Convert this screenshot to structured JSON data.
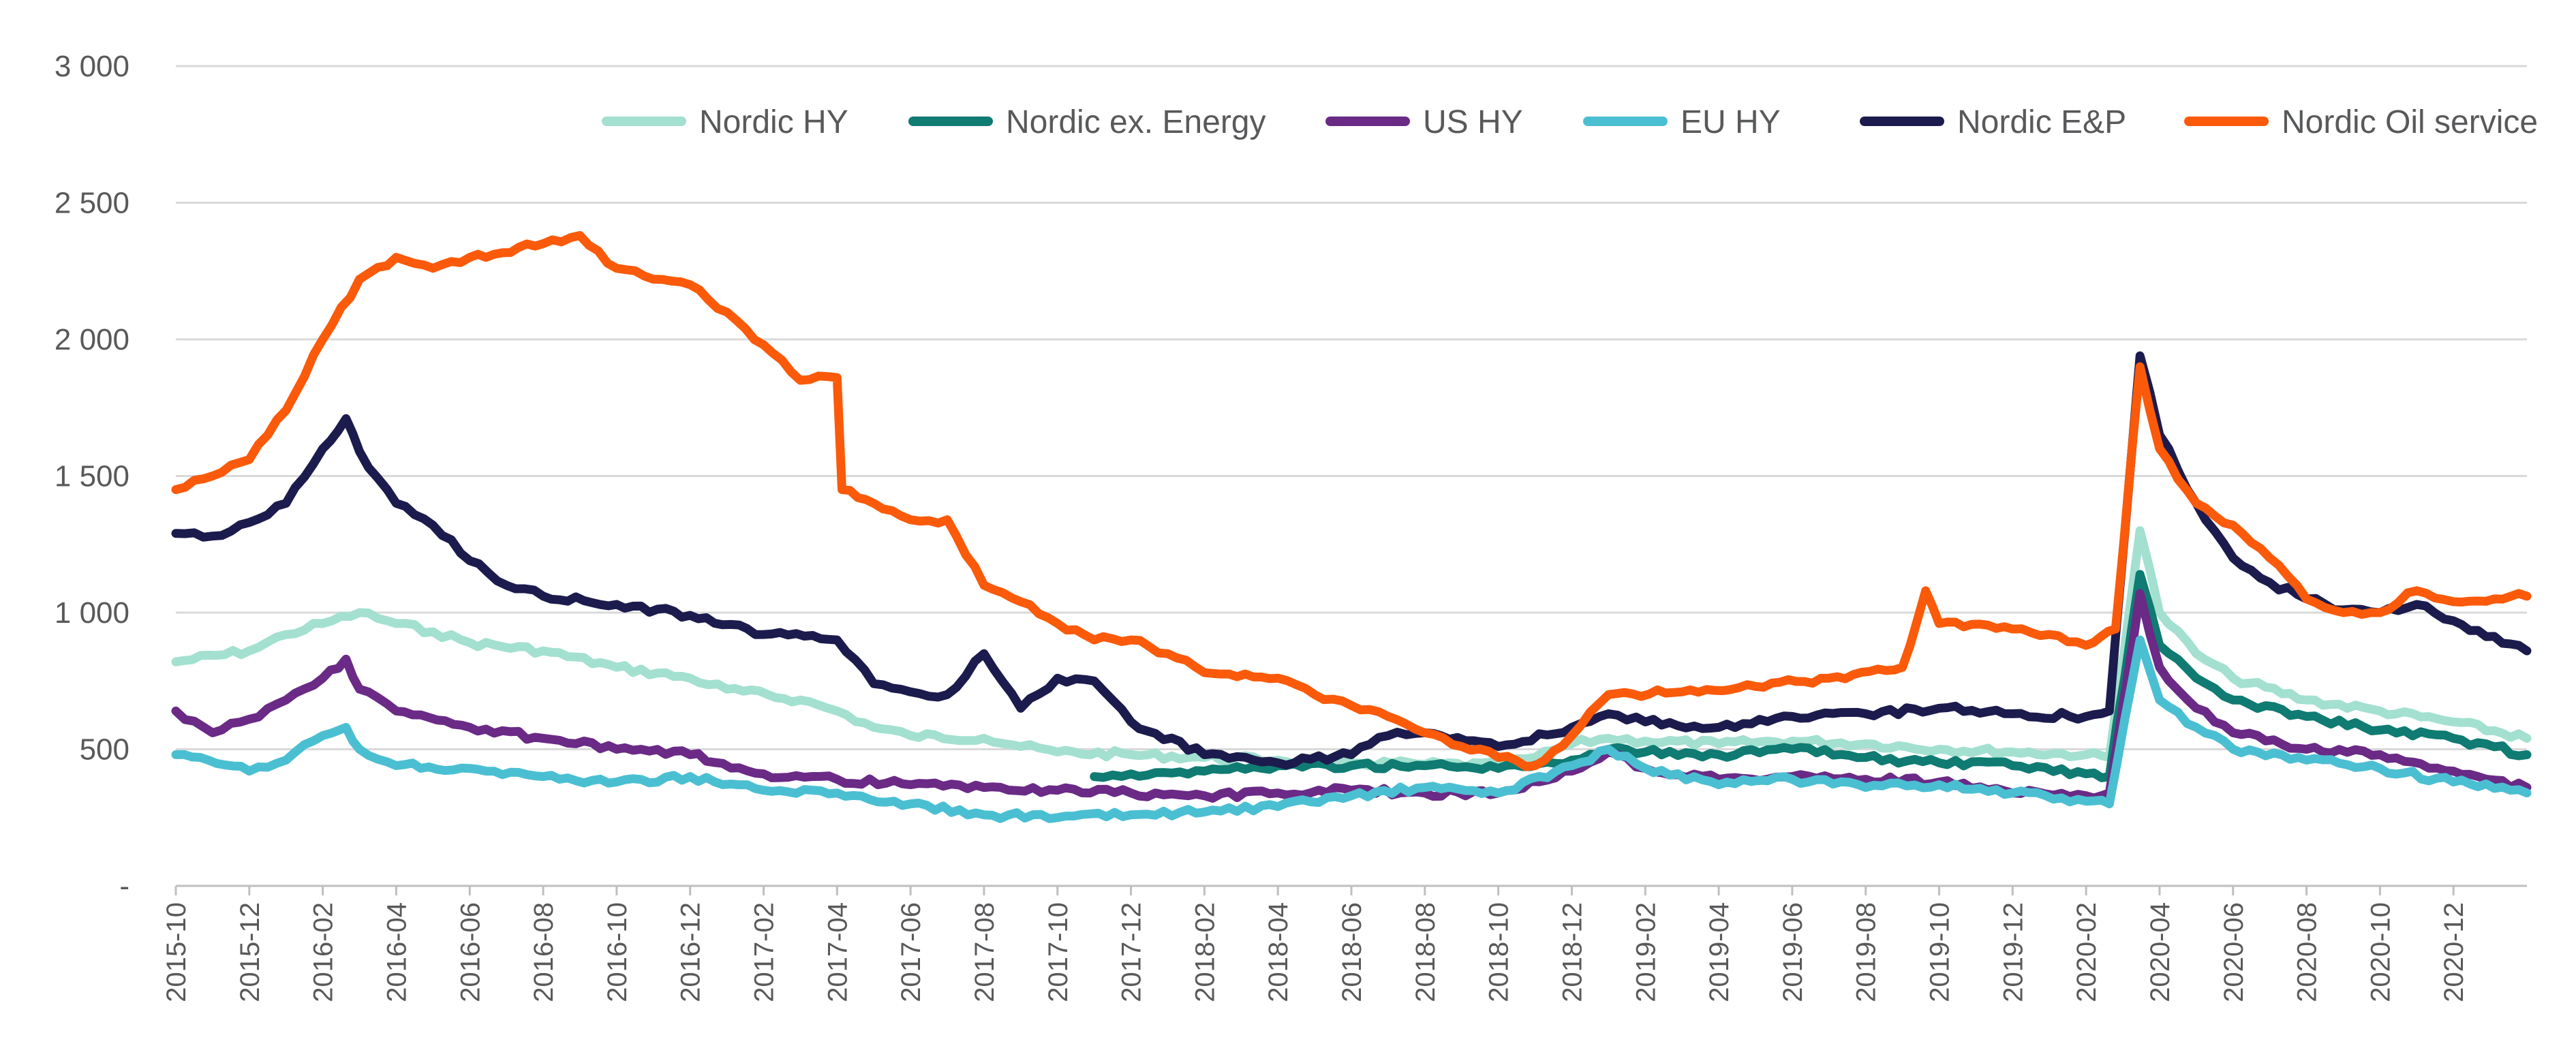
{
  "chart_data": {
    "type": "line",
    "title": "",
    "xlabel": "",
    "ylabel": "",
    "ylim": [
      0,
      3000
    ],
    "y_ticks": [
      {
        "value": 0,
        "label": "-"
      },
      {
        "value": 500,
        "label": "500"
      },
      {
        "value": 1000,
        "label": "1 000"
      },
      {
        "value": 1500,
        "label": "1 500"
      },
      {
        "value": 2000,
        "label": "2 000"
      },
      {
        "value": 2500,
        "label": "2 500"
      },
      {
        "value": 3000,
        "label": "3 000"
      }
    ],
    "x_range": [
      "2015-10",
      "2021-02"
    ],
    "x_ticks": [
      "2015-10",
      "2015-12",
      "2016-02",
      "2016-04",
      "2016-06",
      "2016-08",
      "2016-10",
      "2016-12",
      "2017-02",
      "2017-04",
      "2017-06",
      "2017-08",
      "2017-10",
      "2017-12",
      "2018-02",
      "2018-04",
      "2018-06",
      "2018-08",
      "2018-10",
      "2018-12",
      "2019-02",
      "2019-04",
      "2019-06",
      "2019-08",
      "2019-10",
      "2019-12",
      "2020-02",
      "2020-04",
      "2020-06",
      "2020-08",
      "2020-10",
      "2020-12"
    ],
    "grid": "horizontal",
    "legend_position": "top-right",
    "series": [
      {
        "name": "Nordic HY",
        "color": "#a3e0d0",
        "points": [
          [
            "2015-10",
            820
          ],
          [
            "2015-12",
            860
          ],
          [
            "2016-01",
            920
          ],
          [
            "2016-02",
            960
          ],
          [
            "2016-03",
            1000
          ],
          [
            "2016-04",
            960
          ],
          [
            "2016-05",
            930
          ],
          [
            "2016-06",
            890
          ],
          [
            "2016-08",
            860
          ],
          [
            "2016-10",
            800
          ],
          [
            "2016-12",
            760
          ],
          [
            "2017-01",
            720
          ],
          [
            "2017-03",
            680
          ],
          [
            "2017-04",
            640
          ],
          [
            "2017-05",
            580
          ],
          [
            "2017-06",
            550
          ],
          [
            "2017-08",
            540
          ],
          [
            "2017-09",
            510
          ],
          [
            "2017-10",
            490
          ],
          [
            "2017-12",
            480
          ],
          [
            "2018-02",
            470
          ],
          [
            "2018-04",
            460
          ],
          [
            "2018-06",
            450
          ],
          [
            "2018-08",
            445
          ],
          [
            "2018-10",
            440
          ],
          [
            "2018-11",
            470
          ],
          [
            "2018-12",
            520
          ],
          [
            "2019-01",
            540
          ],
          [
            "2019-02",
            530
          ],
          [
            "2019-04",
            520
          ],
          [
            "2019-06",
            530
          ],
          [
            "2019-08",
            520
          ],
          [
            "2019-10",
            500
          ],
          [
            "2019-12",
            490
          ],
          [
            "2020-02",
            480
          ],
          [
            "2020-02-20",
            470
          ],
          [
            "2020-03-15",
            1300
          ],
          [
            "2020-04",
            1000
          ],
          [
            "2020-05",
            850
          ],
          [
            "2020-06",
            760
          ],
          [
            "2020-08",
            680
          ],
          [
            "2020-10",
            640
          ],
          [
            "2020-12",
            600
          ],
          [
            "2021-02",
            540
          ]
        ]
      },
      {
        "name": "Nordic ex. Energy",
        "color": "#0f7b72",
        "points": [
          [
            "2017-11",
            400
          ],
          [
            "2017-12",
            410
          ],
          [
            "2018-02",
            420
          ],
          [
            "2018-04",
            440
          ],
          [
            "2018-06",
            440
          ],
          [
            "2018-08",
            440
          ],
          [
            "2018-10",
            430
          ],
          [
            "2018-12",
            460
          ],
          [
            "2019-01",
            500
          ],
          [
            "2019-02",
            490
          ],
          [
            "2019-04",
            480
          ],
          [
            "2019-06",
            500
          ],
          [
            "2019-08",
            470
          ],
          [
            "2019-10",
            450
          ],
          [
            "2019-12",
            440
          ],
          [
            "2020-02",
            410
          ],
          [
            "2020-02-20",
            400
          ],
          [
            "2020-03-15",
            1140
          ],
          [
            "2020-04",
            880
          ],
          [
            "2020-05",
            760
          ],
          [
            "2020-06",
            680
          ],
          [
            "2020-08",
            620
          ],
          [
            "2020-10",
            570
          ],
          [
            "2020-12",
            540
          ],
          [
            "2021-02",
            480
          ]
        ]
      },
      {
        "name": "US HY",
        "color": "#6a2a86",
        "points": [
          [
            "2015-10",
            640
          ],
          [
            "2015-11",
            560
          ],
          [
            "2015-12",
            610
          ],
          [
            "2016-01",
            680
          ],
          [
            "2016-02",
            760
          ],
          [
            "2016-02-20",
            830
          ],
          [
            "2016-03",
            720
          ],
          [
            "2016-04",
            640
          ],
          [
            "2016-06",
            580
          ],
          [
            "2016-08",
            540
          ],
          [
            "2016-10",
            500
          ],
          [
            "2016-12",
            480
          ],
          [
            "2017-02",
            410
          ],
          [
            "2017-04",
            390
          ],
          [
            "2017-06",
            370
          ],
          [
            "2017-08",
            360
          ],
          [
            "2017-10",
            350
          ],
          [
            "2017-12",
            340
          ],
          [
            "2018-02",
            330
          ],
          [
            "2018-04",
            340
          ],
          [
            "2018-06",
            350
          ],
          [
            "2018-08",
            340
          ],
          [
            "2018-10",
            340
          ],
          [
            "2018-12",
            420
          ],
          [
            "2019-01",
            490
          ],
          [
            "2019-02",
            430
          ],
          [
            "2019-04",
            390
          ],
          [
            "2019-06",
            400
          ],
          [
            "2019-08",
            390
          ],
          [
            "2019-10",
            380
          ],
          [
            "2019-12",
            340
          ],
          [
            "2020-02",
            330
          ],
          [
            "2020-02-20",
            340
          ],
          [
            "2020-03-15",
            1070
          ],
          [
            "2020-04",
            800
          ],
          [
            "2020-05",
            650
          ],
          [
            "2020-06",
            560
          ],
          [
            "2020-08",
            500
          ],
          [
            "2020-10",
            480
          ],
          [
            "2020-12",
            420
          ],
          [
            "2021-02",
            360
          ]
        ]
      },
      {
        "name": "EU HY",
        "color": "#4bbfd2",
        "points": [
          [
            "2015-10",
            480
          ],
          [
            "2015-12",
            420
          ],
          [
            "2016-01",
            460
          ],
          [
            "2016-02",
            550
          ],
          [
            "2016-02-20",
            580
          ],
          [
            "2016-03",
            500
          ],
          [
            "2016-04",
            440
          ],
          [
            "2016-06",
            430
          ],
          [
            "2016-08",
            400
          ],
          [
            "2016-10",
            380
          ],
          [
            "2016-12",
            400
          ],
          [
            "2017-02",
            350
          ],
          [
            "2017-04",
            340
          ],
          [
            "2017-06",
            300
          ],
          [
            "2017-08",
            260
          ],
          [
            "2017-10",
            250
          ],
          [
            "2017-12",
            260
          ],
          [
            "2018-02",
            270
          ],
          [
            "2018-04",
            290
          ],
          [
            "2018-06",
            330
          ],
          [
            "2018-08",
            360
          ],
          [
            "2018-10",
            340
          ],
          [
            "2018-12",
            440
          ],
          [
            "2019-01",
            500
          ],
          [
            "2019-02",
            430
          ],
          [
            "2019-04",
            370
          ],
          [
            "2019-06",
            390
          ],
          [
            "2019-08",
            360
          ],
          [
            "2019-10",
            370
          ],
          [
            "2019-12",
            340
          ],
          [
            "2020-02",
            310
          ],
          [
            "2020-02-20",
            300
          ],
          [
            "2020-03-15",
            900
          ],
          [
            "2020-04",
            680
          ],
          [
            "2020-05",
            580
          ],
          [
            "2020-06",
            500
          ],
          [
            "2020-08",
            460
          ],
          [
            "2020-10",
            430
          ],
          [
            "2020-12",
            380
          ],
          [
            "2021-02",
            340
          ]
        ]
      },
      {
        "name": "Nordic E&P",
        "color": "#1c1b4d",
        "points": [
          [
            "2015-10",
            1290
          ],
          [
            "2015-11",
            1280
          ],
          [
            "2015-12",
            1330
          ],
          [
            "2016-01",
            1400
          ],
          [
            "2016-02",
            1600
          ],
          [
            "2016-02-20",
            1710
          ],
          [
            "2016-03",
            1590
          ],
          [
            "2016-04",
            1400
          ],
          [
            "2016-05",
            1320
          ],
          [
            "2016-06",
            1190
          ],
          [
            "2016-07",
            1100
          ],
          [
            "2016-08",
            1060
          ],
          [
            "2016-10",
            1030
          ],
          [
            "2016-12",
            990
          ],
          [
            "2017-02",
            920
          ],
          [
            "2017-04",
            900
          ],
          [
            "2017-05",
            740
          ],
          [
            "2017-06",
            710
          ],
          [
            "2017-07",
            700
          ],
          [
            "2017-08",
            850
          ],
          [
            "2017-09",
            650
          ],
          [
            "2017-10",
            760
          ],
          [
            "2017-11",
            750
          ],
          [
            "2017-12",
            600
          ],
          [
            "2018-02",
            480
          ],
          [
            "2018-04",
            450
          ],
          [
            "2018-06",
            480
          ],
          [
            "2018-07",
            550
          ],
          [
            "2018-08",
            560
          ],
          [
            "2018-10",
            510
          ],
          [
            "2018-12",
            580
          ],
          [
            "2019-01",
            630
          ],
          [
            "2019-02",
            600
          ],
          [
            "2019-04",
            580
          ],
          [
            "2019-06",
            620
          ],
          [
            "2019-08",
            630
          ],
          [
            "2019-10",
            650
          ],
          [
            "2019-12",
            630
          ],
          [
            "2020-02",
            620
          ],
          [
            "2020-02-20",
            640
          ],
          [
            "2020-03-15",
            1940
          ],
          [
            "2020-04",
            1650
          ],
          [
            "2020-05",
            1400
          ],
          [
            "2020-06",
            1200
          ],
          [
            "2020-07",
            1110
          ],
          [
            "2020-08",
            1050
          ],
          [
            "2020-09",
            1010
          ],
          [
            "2020-10",
            1000
          ],
          [
            "2020-11",
            1030
          ],
          [
            "2020-12",
            970
          ],
          [
            "2021-02",
            860
          ]
        ]
      },
      {
        "name": "Nordic Oil service",
        "color": "#fa5a0a",
        "points": [
          [
            "2015-10",
            1450
          ],
          [
            "2015-11",
            1500
          ],
          [
            "2015-12",
            1560
          ],
          [
            "2016-01",
            1740
          ],
          [
            "2016-02",
            2000
          ],
          [
            "2016-03",
            2220
          ],
          [
            "2016-04",
            2300
          ],
          [
            "2016-05",
            2260
          ],
          [
            "2016-06",
            2300
          ],
          [
            "2016-08",
            2350
          ],
          [
            "2016-09",
            2380
          ],
          [
            "2016-10",
            2260
          ],
          [
            "2016-11",
            2220
          ],
          [
            "2016-12",
            2200
          ],
          [
            "2017-01",
            2100
          ],
          [
            "2017-02",
            1980
          ],
          [
            "2017-03",
            1850
          ],
          [
            "2017-04",
            1860
          ],
          [
            "2017-04-05",
            1450
          ],
          [
            "2017-05",
            1400
          ],
          [
            "2017-06",
            1340
          ],
          [
            "2017-07",
            1340
          ],
          [
            "2017-08",
            1100
          ],
          [
            "2017-09",
            1040
          ],
          [
            "2017-10",
            960
          ],
          [
            "2017-11",
            900
          ],
          [
            "2017-12",
            900
          ],
          [
            "2018-01",
            850
          ],
          [
            "2018-02",
            780
          ],
          [
            "2018-04",
            760
          ],
          [
            "2018-05",
            700
          ],
          [
            "2018-06",
            660
          ],
          [
            "2018-07",
            620
          ],
          [
            "2018-08",
            560
          ],
          [
            "2018-09",
            510
          ],
          [
            "2018-10",
            470
          ],
          [
            "2018-11",
            440
          ],
          [
            "2018-12",
            550
          ],
          [
            "2019-01",
            700
          ],
          [
            "2019-03",
            710
          ],
          [
            "2019-05",
            730
          ],
          [
            "2019-07",
            760
          ],
          [
            "2019-09",
            800
          ],
          [
            "2019-09-20",
            1080
          ],
          [
            "2019-10",
            960
          ],
          [
            "2019-12",
            940
          ],
          [
            "2020-01",
            920
          ],
          [
            "2020-02",
            880
          ],
          [
            "2020-02-25",
            940
          ],
          [
            "2020-03-15",
            1900
          ],
          [
            "2020-04",
            1600
          ],
          [
            "2020-05",
            1400
          ],
          [
            "2020-06",
            1320
          ],
          [
            "2020-07",
            1200
          ],
          [
            "2020-08",
            1050
          ],
          [
            "2020-09",
            1000
          ],
          [
            "2020-10",
            1000
          ],
          [
            "2020-11",
            1080
          ],
          [
            "2020-12",
            1040
          ],
          [
            "2021-02",
            1060
          ]
        ]
      }
    ]
  }
}
